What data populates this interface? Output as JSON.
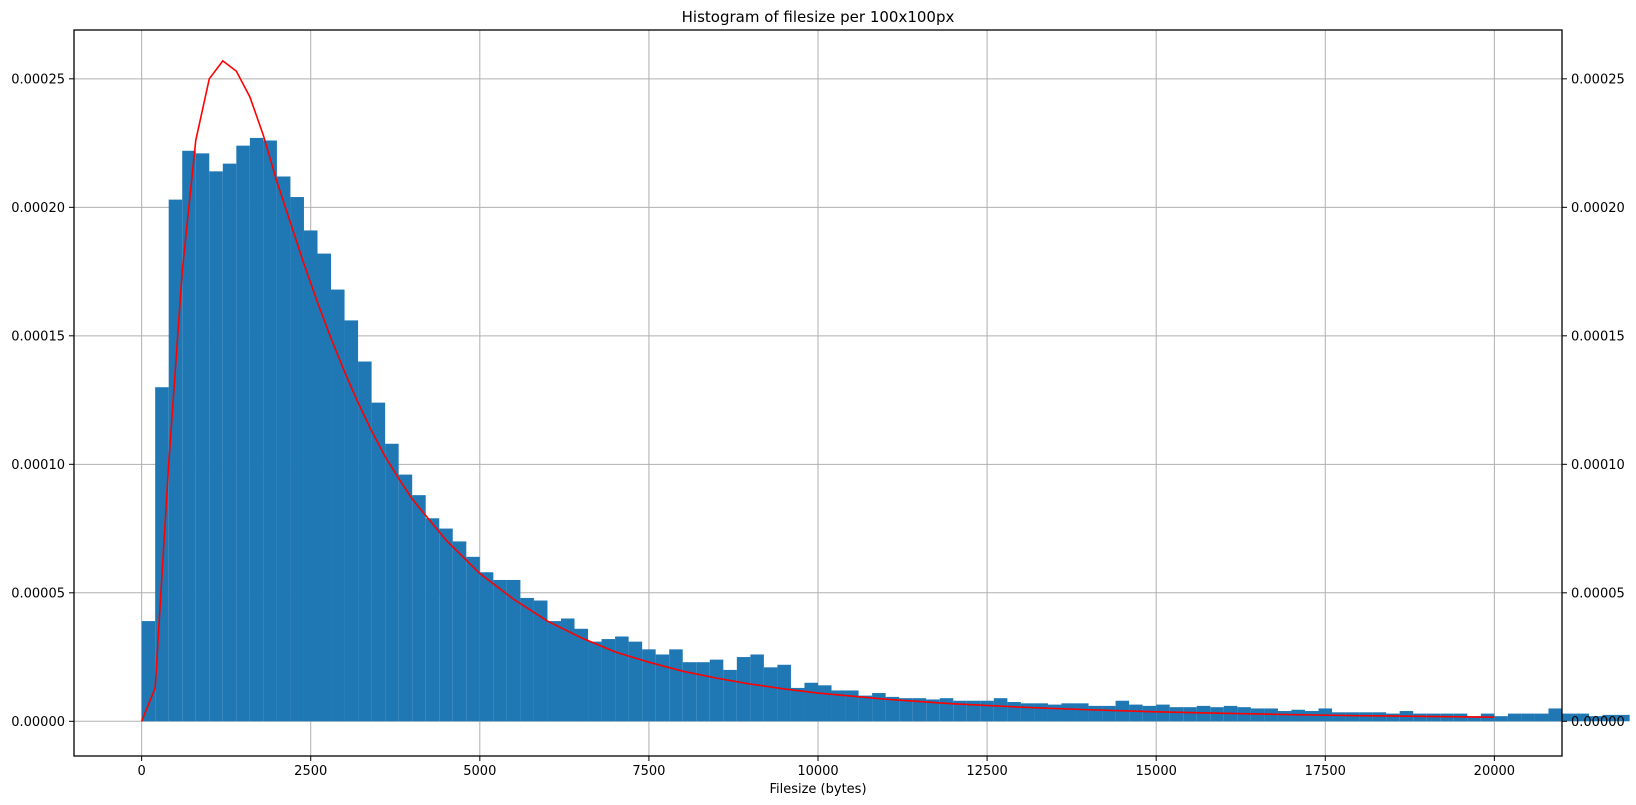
{
  "chart_data": {
    "type": "bar",
    "title": "Histogram of filesize per 100x100px",
    "xlabel": "Filesize (bytes)",
    "ylabel": "",
    "xlim": [
      -1000,
      21000
    ],
    "ylim": [
      -1.35e-05,
      0.000269
    ],
    "grid": true,
    "right_axis_mirrors_left": true,
    "x_ticks": [
      0,
      2500,
      5000,
      7500,
      10000,
      12500,
      15000,
      17500,
      20000
    ],
    "x_tick_labels": [
      "0",
      "2500",
      "5000",
      "7500",
      "10000",
      "12500",
      "15000",
      "17500",
      "20000"
    ],
    "y_ticks": [
      0,
      5e-05,
      0.0001,
      0.00015,
      0.0002,
      0.00025
    ],
    "y_tick_labels": [
      "0.00000",
      "0.00005",
      "0.00010",
      "0.00015",
      "0.00020",
      "0.00025"
    ],
    "bin_start": 0,
    "bin_width": 200,
    "series": [
      {
        "kind": "histogram",
        "color": "#1f77b4",
        "values": [
          3.9e-05,
          0.00013,
          0.000203,
          0.000222,
          0.000221,
          0.000214,
          0.000217,
          0.000224,
          0.000227,
          0.000226,
          0.000212,
          0.000204,
          0.000191,
          0.000182,
          0.000168,
          0.000156,
          0.00014,
          0.000124,
          0.000108,
          9.6e-05,
          8.8e-05,
          7.9e-05,
          7.5e-05,
          7e-05,
          6.4e-05,
          5.8e-05,
          5.5e-05,
          5.5e-05,
          4.8e-05,
          4.7e-05,
          3.9e-05,
          4e-05,
          3.6e-05,
          3.1e-05,
          3.2e-05,
          3.3e-05,
          3.1e-05,
          2.8e-05,
          2.6e-05,
          2.8e-05,
          2.3e-05,
          2.3e-05,
          2.4e-05,
          2e-05,
          2.5e-05,
          2.6e-05,
          2.1e-05,
          2.2e-05,
          1.3e-05,
          1.5e-05,
          1.4e-05,
          1.2e-05,
          1.2e-05,
          1e-05,
          1.1e-05,
          9.5e-06,
          9e-06,
          9e-06,
          8.5e-06,
          9e-06,
          8e-06,
          8e-06,
          8e-06,
          9e-06,
          7.5e-06,
          7e-06,
          7e-06,
          6.5e-06,
          7e-06,
          7e-06,
          6e-06,
          6e-06,
          8e-06,
          6.5e-06,
          6e-06,
          6.5e-06,
          5.5e-06,
          5.5e-06,
          6e-06,
          5.5e-06,
          6e-06,
          5.5e-06,
          5e-06,
          5e-06,
          4e-06,
          4.5e-06,
          4e-06,
          5e-06,
          3.5e-06,
          3.5e-06,
          3.5e-06,
          3.5e-06,
          3e-06,
          4e-06,
          3e-06,
          3e-06,
          3e-06,
          3e-06,
          2e-06,
          3e-06,
          2e-06,
          3e-06,
          3e-06,
          3e-06,
          5e-06,
          3e-06,
          3e-06,
          2e-06,
          2.5e-06,
          2.5e-06
        ]
      },
      {
        "kind": "line",
        "color": "#ff0000",
        "x": [
          0,
          200,
          400,
          600,
          800,
          1000,
          1200,
          1400,
          1600,
          1800,
          2000,
          2200,
          2400,
          2600,
          2800,
          3000,
          3200,
          3400,
          3600,
          3800,
          4000,
          4500,
          5000,
          5500,
          6000,
          6500,
          7000,
          7500,
          8000,
          8500,
          9000,
          9500,
          10000,
          11000,
          12000,
          13000,
          14000,
          15000,
          16000,
          17000,
          18000,
          19000,
          20000
        ],
        "y": [
          0,
          1.3e-05,
          0.0001,
          0.000175,
          0.000226,
          0.00025,
          0.000257,
          0.000253,
          0.000243,
          0.000228,
          0.00021,
          0.000194,
          0.000178,
          0.000163,
          0.000149,
          0.000136,
          0.000124,
          0.000113,
          0.000103,
          9.45e-05,
          8.65e-05,
          7.05e-05,
          5.75e-05,
          4.75e-05,
          3.9e-05,
          3.25e-05,
          2.7e-05,
          2.3e-05,
          1.95e-05,
          1.68e-05,
          1.45e-05,
          1.26e-05,
          1.1e-05,
          8.6e-06,
          6.8e-06,
          5.5e-06,
          4.5e-06,
          3.7e-06,
          3.1e-06,
          2.6e-06,
          2.2e-06,
          1.9e-06,
          1.6e-06
        ]
      }
    ]
  }
}
